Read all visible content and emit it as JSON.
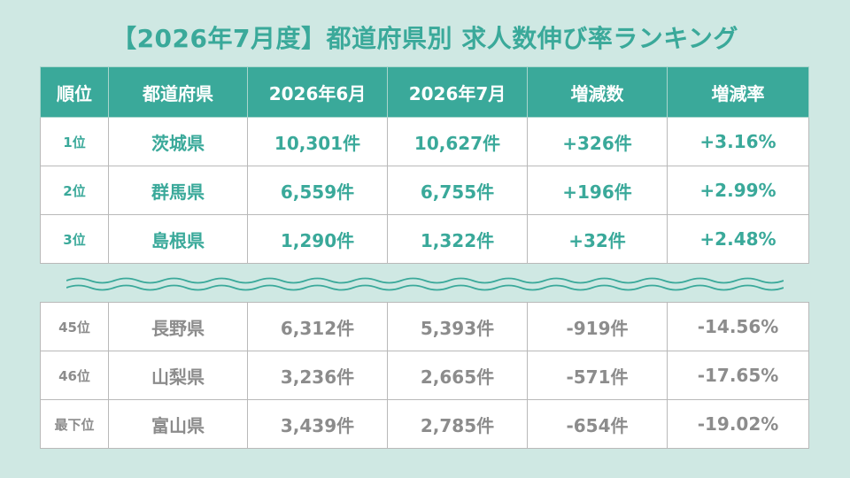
{
  "title": "【2026年7月度】都道府県別 求人数伸び率ランキング",
  "headers": [
    "順位",
    "都道府県",
    "2026年6月",
    "2026年7月",
    "増減数",
    "増減率"
  ],
  "top_rows": [
    {
      "rank": "1位",
      "prefecture": "茨城県",
      "june": "10,301件",
      "july": "10,627件",
      "change": "+326件",
      "rate": "+3.16%"
    },
    {
      "rank": "2位",
      "prefecture": "群馬県",
      "june": "6,559件",
      "july": "6,755件",
      "change": "+196件",
      "rate": "+2.99%"
    },
    {
      "rank": "3位",
      "prefecture": "島根県",
      "june": "1,290件",
      "july": "1,322件",
      "change": "+32件",
      "rate": "+2.48%"
    }
  ],
  "bottom_rows": [
    {
      "rank": "45位",
      "prefecture": "長野県",
      "june": "6,312件",
      "july": "5,393件",
      "change": "-919件",
      "rate": "-14.56%"
    },
    {
      "rank": "46位",
      "prefecture": "山梨県",
      "june": "3,236件",
      "july": "2,665件",
      "change": "-571件",
      "rate": "-17.65%"
    },
    {
      "rank": "最下位",
      "prefecture": "富山県",
      "june": "3,439件",
      "july": "2,785件",
      "change": "-654件",
      "rate": "-19.02%"
    }
  ],
  "colors": {
    "accent": "#3aa99a",
    "background": "#cfe8e3",
    "muted_text": "#8c8c8c"
  }
}
